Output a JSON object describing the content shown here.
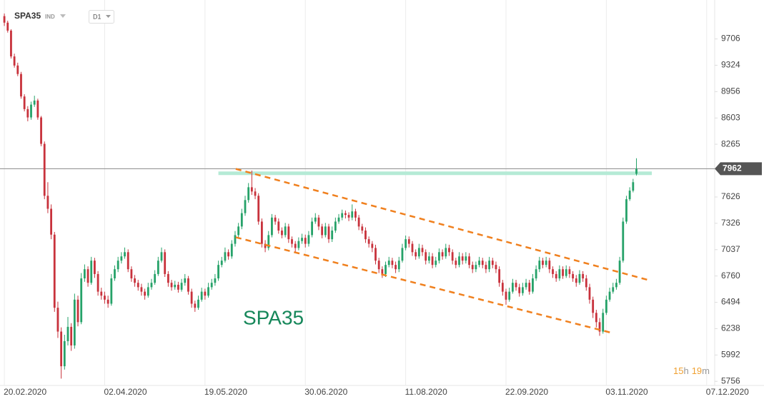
{
  "chart_data": {
    "type": "candlestick",
    "title": "SPA35",
    "market": "IND",
    "interval": "D1",
    "log_scale": true,
    "grid": "vertical",
    "up_color": "#26a269",
    "down_color": "#c8323c",
    "ylim": [
      5720,
      10300
    ],
    "yticks": [
      5756,
      5992,
      6238,
      6494,
      6760,
      7037,
      7326,
      7626,
      8265,
      8603,
      8956,
      9324,
      9706
    ],
    "xlim": [
      -1.3,
      212.4
    ],
    "xticks": [
      {
        "value": 0,
        "label": "20.02.2020"
      },
      {
        "value": 30,
        "label": "02.04.2020"
      },
      {
        "value": 60,
        "label": "19.05.2020"
      },
      {
        "value": 90,
        "label": "30.06.2020"
      },
      {
        "value": 120,
        "label": "11.08.2020"
      },
      {
        "value": 150,
        "label": "22.09.2020"
      },
      {
        "value": 180,
        "label": "03.11.2020"
      },
      {
        "value": 210,
        "label": "07.12.2020"
      }
    ],
    "last_price": 7962,
    "last_price_color": "#555555",
    "level": {
      "value": 7907,
      "from": 64,
      "to": 193.6,
      "color": "#b5ead6"
    },
    "trendlines": [
      {
        "color": "#f0801e",
        "points": [
          [
            69.2,
            7960
          ],
          [
            192.7,
            6717
          ]
        ]
      },
      {
        "color": "#f0801e",
        "points": [
          [
            69.2,
            7171
          ],
          [
            182,
            6195
          ]
        ]
      }
    ],
    "timer": {
      "hours": "15",
      "hours_unit": "h",
      "minutes": "19",
      "minutes_unit": "m"
    },
    "candles": [
      [
        10050,
        10090,
        9900,
        9950
      ],
      [
        9950,
        9980,
        9800,
        9830
      ],
      [
        9830,
        9850,
        9420,
        9450
      ],
      [
        9450,
        9490,
        9290,
        9320
      ],
      [
        9320,
        9360,
        9170,
        9200
      ],
      [
        9200,
        9230,
        8860,
        8890
      ],
      [
        8890,
        8920,
        8690,
        8720
      ],
      [
        8720,
        8760,
        8560,
        8610
      ],
      [
        8610,
        8820,
        8580,
        8780
      ],
      [
        8780,
        8900,
        8750,
        8835
      ],
      [
        8835,
        8860,
        8580,
        8610
      ],
      [
        8610,
        8630,
        8240,
        8270
      ],
      [
        8270,
        8300,
        7600,
        7640
      ],
      [
        7640,
        7800,
        7440,
        7490
      ],
      [
        7490,
        7540,
        7150,
        7200
      ],
      [
        7200,
        7230,
        6400,
        6440
      ],
      [
        6440,
        6500,
        6150,
        6210
      ],
      [
        6210,
        6250,
        5780,
        5890
      ],
      [
        5890,
        6180,
        5860,
        6120
      ],
      [
        6120,
        6350,
        6080,
        6255
      ],
      [
        6255,
        6290,
        6030,
        6080
      ],
      [
        6080,
        6580,
        6050,
        6520
      ],
      [
        6520,
        6560,
        6260,
        6300
      ],
      [
        6300,
        6790,
        6280,
        6735
      ],
      [
        6735,
        6880,
        6700,
        6830
      ],
      [
        6830,
        6860,
        6650,
        6690
      ],
      [
        6690,
        6960,
        6670,
        6920
      ],
      [
        6920,
        6950,
        6740,
        6780
      ],
      [
        6780,
        6810,
        6560,
        6600
      ],
      [
        6600,
        6640,
        6520,
        6560
      ],
      [
        6560,
        6600,
        6480,
        6520
      ],
      [
        6520,
        6560,
        6440,
        6480
      ],
      [
        6480,
        6780,
        6460,
        6735
      ],
      [
        6735,
        6870,
        6710,
        6830
      ],
      [
        6830,
        6960,
        6800,
        6920
      ],
      [
        6920,
        7010,
        6890,
        6965
      ],
      [
        6965,
        7060,
        6940,
        7010
      ],
      [
        7010,
        7040,
        6800,
        6830
      ],
      [
        6830,
        6860,
        6700,
        6735
      ],
      [
        6735,
        6770,
        6650,
        6690
      ],
      [
        6690,
        6720,
        6610,
        6645
      ],
      [
        6645,
        6680,
        6560,
        6600
      ],
      [
        6600,
        6630,
        6520,
        6560
      ],
      [
        6560,
        6690,
        6540,
        6645
      ],
      [
        6645,
        6730,
        6620,
        6690
      ],
      [
        6690,
        6820,
        6670,
        6780
      ],
      [
        6780,
        6960,
        6760,
        6920
      ],
      [
        6920,
        7060,
        6900,
        7010
      ],
      [
        7010,
        7040,
        6750,
        6780
      ],
      [
        6780,
        6810,
        6650,
        6690
      ],
      [
        6690,
        6720,
        6610,
        6645
      ],
      [
        6645,
        6710,
        6620,
        6670
      ],
      [
        6670,
        6700,
        6590,
        6620
      ],
      [
        6620,
        6730,
        6600,
        6690
      ],
      [
        6690,
        6780,
        6660,
        6735
      ],
      [
        6735,
        6760,
        6570,
        6600
      ],
      [
        6600,
        6630,
        6440,
        6480
      ],
      [
        6480,
        6510,
        6400,
        6440
      ],
      [
        6440,
        6560,
        6420,
        6520
      ],
      [
        6520,
        6640,
        6500,
        6600
      ],
      [
        6600,
        6630,
        6520,
        6560
      ],
      [
        6560,
        6690,
        6540,
        6645
      ],
      [
        6645,
        6730,
        6620,
        6690
      ],
      [
        6690,
        6780,
        6660,
        6735
      ],
      [
        6735,
        6920,
        6710,
        6875
      ],
      [
        6875,
        6960,
        6850,
        6920
      ],
      [
        6920,
        7060,
        6900,
        7010
      ],
      [
        7010,
        7040,
        6930,
        6965
      ],
      [
        6965,
        7140,
        6940,
        7100
      ],
      [
        7100,
        7240,
        7070,
        7195
      ],
      [
        7195,
        7330,
        7170,
        7290
      ],
      [
        7290,
        7490,
        7260,
        7440
      ],
      [
        7440,
        7640,
        7410,
        7590
      ],
      [
        7590,
        7790,
        7560,
        7740
      ],
      [
        7740,
        7940,
        7650,
        7690
      ],
      [
        7690,
        7730,
        7600,
        7640
      ],
      [
        7640,
        7670,
        7310,
        7345
      ],
      [
        7345,
        7380,
        7060,
        7100
      ],
      [
        7100,
        7140,
        7010,
        7055
      ],
      [
        7055,
        7240,
        7030,
        7195
      ],
      [
        7195,
        7430,
        7170,
        7390
      ],
      [
        7390,
        7420,
        7310,
        7345
      ],
      [
        7345,
        7380,
        7210,
        7245
      ],
      [
        7245,
        7280,
        7160,
        7195
      ],
      [
        7195,
        7330,
        7170,
        7290
      ],
      [
        7290,
        7320,
        7110,
        7150
      ],
      [
        7150,
        7180,
        7060,
        7100
      ],
      [
        7100,
        7130,
        7010,
        7055
      ],
      [
        7055,
        7170,
        7030,
        7130
      ],
      [
        7130,
        7210,
        7100,
        7165
      ],
      [
        7165,
        7200,
        7060,
        7100
      ],
      [
        7100,
        7240,
        7070,
        7195
      ],
      [
        7195,
        7390,
        7170,
        7345
      ],
      [
        7345,
        7440,
        7320,
        7390
      ],
      [
        7390,
        7420,
        7250,
        7290
      ],
      [
        7290,
        7320,
        7160,
        7195
      ],
      [
        7195,
        7330,
        7170,
        7290
      ],
      [
        7290,
        7320,
        7110,
        7150
      ],
      [
        7150,
        7290,
        7120,
        7245
      ],
      [
        7245,
        7390,
        7220,
        7345
      ],
      [
        7345,
        7430,
        7320,
        7390
      ],
      [
        7390,
        7480,
        7360,
        7440
      ],
      [
        7440,
        7470,
        7380,
        7420
      ],
      [
        7420,
        7450,
        7350,
        7390
      ],
      [
        7390,
        7540,
        7360,
        7460
      ],
      [
        7460,
        7490,
        7350,
        7390
      ],
      [
        7390,
        7420,
        7250,
        7290
      ],
      [
        7290,
        7320,
        7210,
        7245
      ],
      [
        7245,
        7280,
        7110,
        7150
      ],
      [
        7150,
        7180,
        7060,
        7100
      ],
      [
        7100,
        7130,
        7010,
        7055
      ],
      [
        7055,
        7090,
        6880,
        6920
      ],
      [
        6920,
        6950,
        6790,
        6830
      ],
      [
        6830,
        6860,
        6740,
        6780
      ],
      [
        6780,
        6910,
        6750,
        6875
      ],
      [
        6875,
        6960,
        6850,
        6920
      ],
      [
        6920,
        6950,
        6840,
        6875
      ],
      [
        6875,
        6910,
        6790,
        6830
      ],
      [
        6830,
        6960,
        6800,
        6920
      ],
      [
        6920,
        7100,
        6900,
        7055
      ],
      [
        7055,
        7190,
        7030,
        7150
      ],
      [
        7150,
        7180,
        7060,
        7100
      ],
      [
        7100,
        7130,
        6970,
        7010
      ],
      [
        7010,
        7040,
        6930,
        6965
      ],
      [
        6965,
        7100,
        6940,
        7055
      ],
      [
        7055,
        7090,
        6970,
        7010
      ],
      [
        7010,
        7040,
        6880,
        6920
      ],
      [
        6920,
        7010,
        6890,
        6965
      ],
      [
        6965,
        7000,
        6840,
        6875
      ],
      [
        6875,
        6960,
        6850,
        6920
      ],
      [
        6920,
        7050,
        6890,
        7010
      ],
      [
        7010,
        7040,
        6930,
        6965
      ],
      [
        6965,
        7100,
        6940,
        7055
      ],
      [
        7055,
        7090,
        6970,
        7010
      ],
      [
        7010,
        7040,
        6880,
        6920
      ],
      [
        6920,
        6950,
        6840,
        6875
      ],
      [
        6875,
        7010,
        6850,
        6965
      ],
      [
        6965,
        7000,
        6880,
        6920
      ],
      [
        6920,
        7010,
        6890,
        6965
      ],
      [
        6965,
        7000,
        6840,
        6875
      ],
      [
        6875,
        6910,
        6790,
        6830
      ],
      [
        6830,
        6910,
        6800,
        6875
      ],
      [
        6875,
        6960,
        6850,
        6920
      ],
      [
        6920,
        6950,
        6840,
        6875
      ],
      [
        6875,
        6910,
        6790,
        6830
      ],
      [
        6830,
        6960,
        6800,
        6920
      ],
      [
        6920,
        6950,
        6840,
        6875
      ],
      [
        6875,
        6910,
        6790,
        6830
      ],
      [
        6830,
        6860,
        6650,
        6690
      ],
      [
        6690,
        6720,
        6560,
        6600
      ],
      [
        6600,
        6630,
        6470,
        6520
      ],
      [
        6520,
        6640,
        6500,
        6600
      ],
      [
        6600,
        6730,
        6580,
        6690
      ],
      [
        6690,
        6720,
        6610,
        6645
      ],
      [
        6645,
        6680,
        6550,
        6585
      ],
      [
        6585,
        6690,
        6560,
        6645
      ],
      [
        6645,
        6730,
        6620,
        6690
      ],
      [
        6690,
        6720,
        6570,
        6600
      ],
      [
        6600,
        6780,
        6580,
        6735
      ],
      [
        6735,
        6870,
        6710,
        6830
      ],
      [
        6830,
        6960,
        6800,
        6920
      ],
      [
        6920,
        6950,
        6840,
        6875
      ],
      [
        6875,
        6960,
        6850,
        6920
      ],
      [
        6920,
        6950,
        6790,
        6830
      ],
      [
        6830,
        6860,
        6740,
        6780
      ],
      [
        6780,
        6810,
        6700,
        6735
      ],
      [
        6735,
        6870,
        6710,
        6830
      ],
      [
        6830,
        6860,
        6730,
        6760
      ],
      [
        6760,
        6870,
        6740,
        6830
      ],
      [
        6830,
        6860,
        6740,
        6780
      ],
      [
        6780,
        6810,
        6700,
        6735
      ],
      [
        6735,
        6770,
        6650,
        6690
      ],
      [
        6690,
        6820,
        6670,
        6780
      ],
      [
        6780,
        6810,
        6700,
        6735
      ],
      [
        6735,
        6770,
        6610,
        6645
      ],
      [
        6645,
        6680,
        6480,
        6520
      ],
      [
        6520,
        6550,
        6340,
        6390
      ],
      [
        6390,
        6420,
        6250,
        6300
      ],
      [
        6300,
        6340,
        6170,
        6210
      ],
      [
        6210,
        6430,
        6190,
        6390
      ],
      [
        6390,
        6560,
        6370,
        6520
      ],
      [
        6520,
        6640,
        6500,
        6600
      ],
      [
        6600,
        6690,
        6580,
        6645
      ],
      [
        6645,
        6730,
        6620,
        6690
      ],
      [
        6690,
        6960,
        6670,
        6920
      ],
      [
        6920,
        7390,
        6900,
        7345
      ],
      [
        7345,
        7640,
        7320,
        7600
      ],
      [
        7600,
        7740,
        7580,
        7700
      ],
      [
        7700,
        7840,
        7680,
        7800
      ],
      [
        7900,
        8090,
        7880,
        7962
      ]
    ]
  }
}
